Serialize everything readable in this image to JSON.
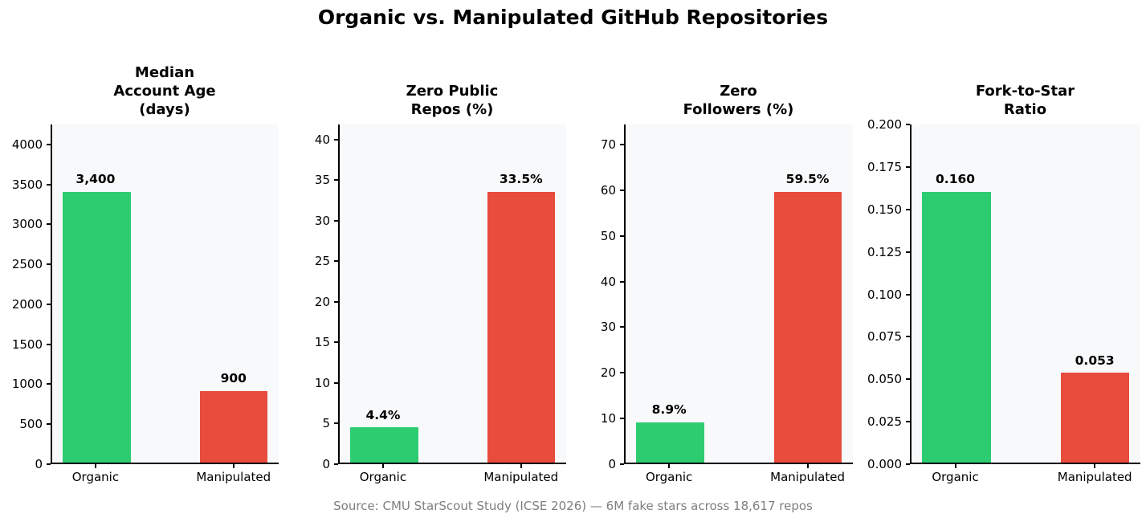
{
  "title": "Organic vs. Manipulated GitHub Repositories",
  "source_caption": "Source: CMU StarScout Study (ICSE 2026) — 6M fake stars across 18,617 repos",
  "colors": {
    "organic_bar": "#2ecc71",
    "manipulated_bar": "#e74c3c",
    "plot_background": "#f8f9fa",
    "caption_text": "#7f7f7f",
    "axis_and_text": "#000000"
  },
  "chart_data": [
    {
      "type": "bar",
      "title": "Median\nAccount Age\n(days)",
      "categories": [
        "Organic",
        "Manipulated"
      ],
      "values": [
        3400,
        900
      ],
      "value_labels": [
        "3,400",
        "900"
      ],
      "bar_colors": [
        "#2ecc71",
        "#e74c3c"
      ],
      "ylim": [
        0,
        4250
      ],
      "yticks": [
        0,
        500,
        1000,
        1500,
        2000,
        2500,
        3000,
        3500,
        4000
      ],
      "ytick_labels": [
        "0",
        "500",
        "1000",
        "1500",
        "2000",
        "2500",
        "3000",
        "3500",
        "4000"
      ],
      "grid": false,
      "legend": null
    },
    {
      "type": "bar",
      "title": "Zero Public\nRepos (%)",
      "categories": [
        "Organic",
        "Manipulated"
      ],
      "values": [
        4.4,
        33.5
      ],
      "value_labels": [
        "4.4%",
        "33.5%"
      ],
      "bar_colors": [
        "#2ecc71",
        "#e74c3c"
      ],
      "ylim": [
        0,
        41.875
      ],
      "yticks": [
        0,
        5,
        10,
        15,
        20,
        25,
        30,
        35,
        40
      ],
      "ytick_labels": [
        "0",
        "5",
        "10",
        "15",
        "20",
        "25",
        "30",
        "35",
        "40"
      ],
      "grid": false,
      "legend": null
    },
    {
      "type": "bar",
      "title": "Zero\nFollowers (%)",
      "categories": [
        "Organic",
        "Manipulated"
      ],
      "values": [
        8.9,
        59.5
      ],
      "value_labels": [
        "8.9%",
        "59.5%"
      ],
      "bar_colors": [
        "#2ecc71",
        "#e74c3c"
      ],
      "ylim": [
        0,
        74.375
      ],
      "yticks": [
        0,
        10,
        20,
        30,
        40,
        50,
        60,
        70
      ],
      "ytick_labels": [
        "0",
        "10",
        "20",
        "30",
        "40",
        "50",
        "60",
        "70"
      ],
      "grid": false,
      "legend": null
    },
    {
      "type": "bar",
      "title": "Fork-to-Star\nRatio",
      "categories": [
        "Organic",
        "Manipulated"
      ],
      "values": [
        0.16,
        0.053
      ],
      "value_labels": [
        "0.160",
        "0.053"
      ],
      "bar_colors": [
        "#2ecc71",
        "#e74c3c"
      ],
      "ylim": [
        0,
        0.2
      ],
      "yticks": [
        0,
        0.025,
        0.05,
        0.075,
        0.1,
        0.125,
        0.15,
        0.175,
        0.2
      ],
      "ytick_labels": [
        "0.000",
        "0.025",
        "0.050",
        "0.075",
        "0.100",
        "0.125",
        "0.150",
        "0.175",
        "0.200"
      ],
      "grid": false,
      "legend": null
    }
  ]
}
